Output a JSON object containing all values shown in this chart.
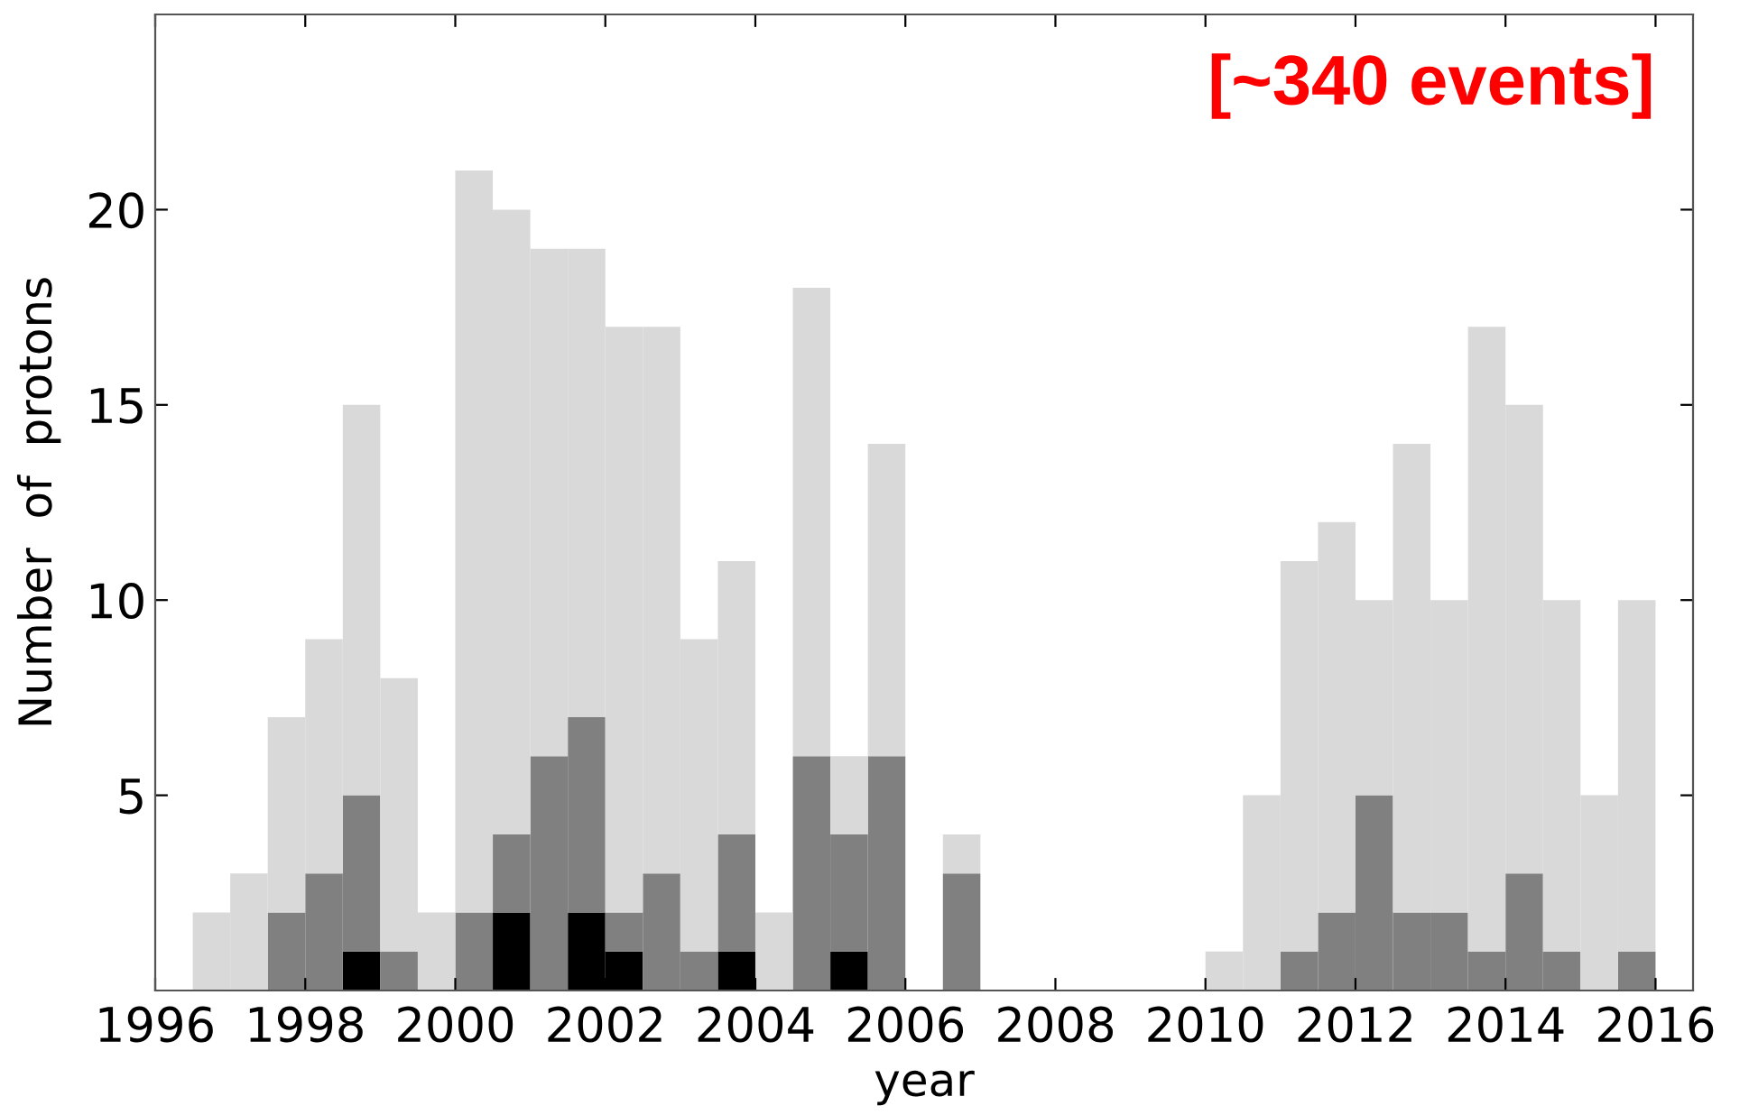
{
  "chart_data": {
    "type": "bar",
    "xlabel": "year",
    "ylabel": "Number  of  protons",
    "annotations": [
      "[~340 events]"
    ],
    "x": [
      1996.75,
      1997.25,
      1997.75,
      1998.25,
      1998.75,
      1999.25,
      1999.75,
      2000.25,
      2000.75,
      2001.25,
      2001.75,
      2002.25,
      2002.75,
      2003.25,
      2003.75,
      2004.25,
      2004.75,
      2005.25,
      2005.75,
      2006.25,
      2006.75,
      2007.25,
      2007.75,
      2008.25,
      2008.75,
      2009.25,
      2009.75,
      2010.25,
      2010.75,
      2011.25,
      2011.75,
      2012.25,
      2012.75,
      2013.25,
      2013.75,
      2014.25,
      2014.75,
      2015.25,
      2015.75
    ],
    "series": [
      {
        "color": "#000000",
        "values": [
          0,
          0,
          0,
          0,
          1,
          0,
          0,
          0,
          2,
          0,
          2,
          1,
          0,
          0,
          1,
          0,
          0,
          1,
          0,
          0,
          0,
          0,
          0,
          0,
          0,
          0,
          0,
          0,
          0,
          0,
          0,
          0,
          0,
          0,
          0,
          0,
          0,
          0,
          0
        ]
      },
      {
        "color": "#808080",
        "values": [
          0,
          0,
          2,
          3,
          4,
          1,
          0,
          2,
          2,
          6,
          5,
          1,
          3,
          1,
          3,
          0,
          6,
          3,
          6,
          0,
          3,
          0,
          0,
          0,
          0,
          0,
          0,
          0,
          0,
          1,
          2,
          5,
          2,
          2,
          1,
          3,
          1,
          0,
          1
        ]
      },
      {
        "color": "#d9d9d9",
        "values": [
          2,
          3,
          5,
          6,
          10,
          7,
          2,
          19,
          16,
          13,
          12,
          15,
          14,
          8,
          7,
          2,
          12,
          2,
          8,
          0,
          1,
          0,
          0,
          0,
          0,
          0,
          0,
          1,
          5,
          10,
          10,
          5,
          12,
          8,
          16,
          12,
          9,
          5,
          9
        ]
      }
    ],
    "stacked": true,
    "xlim": [
      1996,
      2016.5
    ],
    "xticks": [
      1996,
      1998,
      2000,
      2002,
      2004,
      2006,
      2008,
      2010,
      2012,
      2014,
      2016
    ],
    "ylim": [
      0,
      25
    ],
    "yticks": [
      5,
      10,
      15,
      20
    ],
    "grid": false,
    "legend": false
  }
}
